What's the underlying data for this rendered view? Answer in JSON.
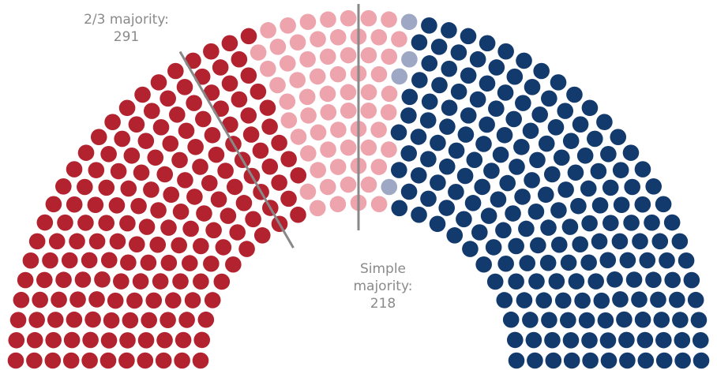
{
  "chart_data": {
    "type": "parliament",
    "values": [
      175,
      62,
      4,
      194
    ],
    "colors": [
      "#b3232f",
      "#eda4ad",
      "#9ea8c4",
      "#133a6d"
    ],
    "annotations": [
      {
        "label": "2/3 majority:",
        "value": 291
      },
      {
        "label": "Simple majority:",
        "value": 218
      }
    ]
  }
}
